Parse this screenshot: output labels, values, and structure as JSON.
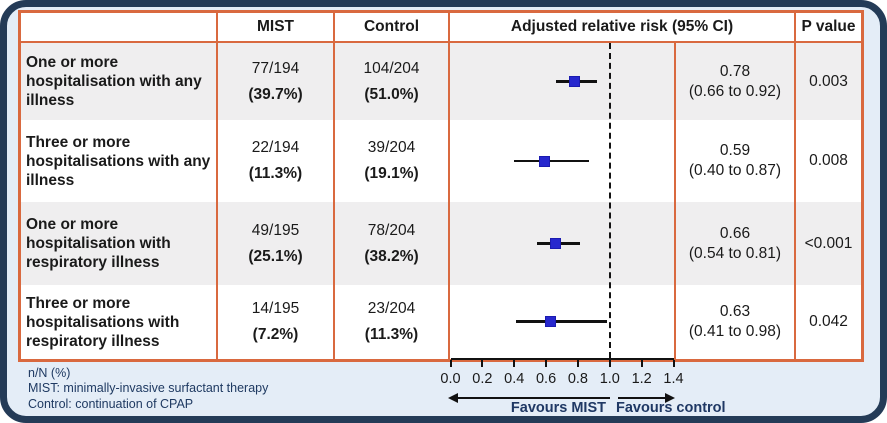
{
  "table": {
    "headers": {
      "endpoint": "",
      "mist": "MIST",
      "control": "Control",
      "arr": "Adjusted relative risk (95% CI)",
      "pvalue": "P value"
    },
    "rows": [
      {
        "label": "One or more hospitalisation with any illness",
        "mist_n": "77/194",
        "mist_pct": "(39.7%)",
        "control_n": "104/204",
        "control_pct": "(51.0%)",
        "estimate": "0.78",
        "ci_text": "(0.66 to 0.92)",
        "p": "0.003"
      },
      {
        "label": "Three or more hospitalisations with any illness",
        "mist_n": "22/194",
        "mist_pct": "(11.3%)",
        "control_n": "39/204",
        "control_pct": "(19.1%)",
        "estimate": "0.59",
        "ci_text": "(0.40 to 0.87)",
        "p": "0.008"
      },
      {
        "label": "One or more hospitalisation with respiratory illness",
        "mist_n": "49/195",
        "mist_pct": "(25.1%)",
        "control_n": "78/204",
        "control_pct": "(38.2%)",
        "estimate": "0.66",
        "ci_text": "(0.54 to 0.81)",
        "p": "<0.001"
      },
      {
        "label": "Three or more hospitalisations with respiratory illness",
        "mist_n": "14/195",
        "mist_pct": "(7.2%)",
        "control_n": "23/204",
        "control_pct": "(11.3%)",
        "estimate": "0.63",
        "ci_text": "(0.41 to 0.98)",
        "p": "0.042"
      }
    ]
  },
  "chart_data": {
    "type": "scatter",
    "subtype": "forest",
    "title": "Adjusted relative risk (95% CI)",
    "series": [
      {
        "name": "One or more hospitalisation with any illness",
        "estimate": 0.78,
        "ci_lower": 0.66,
        "ci_upper": 0.92
      },
      {
        "name": "Three or more hospitalisations with any illness",
        "estimate": 0.59,
        "ci_lower": 0.4,
        "ci_upper": 0.87
      },
      {
        "name": "One or more hospitalisation with respiratory illness",
        "estimate": 0.66,
        "ci_lower": 0.54,
        "ci_upper": 0.81
      },
      {
        "name": "Three or more hospitalisations with respiratory illness",
        "estimate": 0.63,
        "ci_lower": 0.41,
        "ci_upper": 0.98
      }
    ],
    "xlim": [
      0.0,
      1.4
    ],
    "x_ticks": [
      0.0,
      0.2,
      0.4,
      0.6,
      0.8,
      1.0,
      1.2,
      1.4
    ],
    "x_tick_labels": [
      "0.0",
      "0.2",
      "0.4",
      "0.6",
      "0.8",
      "1.0",
      "1.2",
      "1.4"
    ],
    "reference_line": 1.0,
    "grid": false,
    "annotations": {
      "left_arrow_label": "Favours MIST",
      "right_arrow_label": "Favours control"
    },
    "marker_color": "#2728CE"
  },
  "footnotes": [
    "n/N (%)",
    "MIST: minimally-invasive surfactant therapy",
    "Control: continuation of CPAP"
  ],
  "colors": {
    "frame_navy": "#243B57",
    "panel_light_blue": "#E4EDF7",
    "table_border_orange": "#D9693F",
    "row_stripe_gray": "#EFEEEF",
    "marker_blue": "#2728CE",
    "note_text_navy": "#1F3A62"
  }
}
